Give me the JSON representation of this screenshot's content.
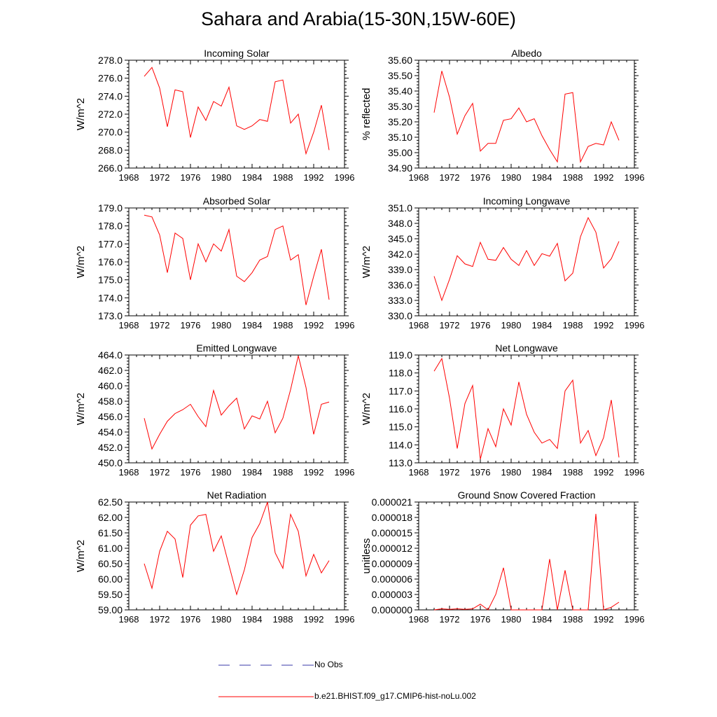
{
  "title": "Sahara and Arabia(15-30N,15W-60E)",
  "colors": {
    "model_line": "#ff0000",
    "obs_line": "#3a3aa8",
    "axis": "#000000"
  },
  "legend": {
    "obs_label": "No Obs",
    "model_label": "b.e21.BHIST.f09_g17.CMIP6-hist-noLu.002"
  },
  "chart_data": [
    {
      "type": "line",
      "title": "Incoming Solar",
      "ylabel": "W/m^2",
      "xlim": [
        1968,
        1996
      ],
      "ylim": [
        266.0,
        278.0
      ],
      "xticks": [
        1968,
        1972,
        1976,
        1980,
        1984,
        1988,
        1992,
        1996
      ],
      "xtick_labels": [
        "1968",
        "1972",
        "1976",
        "1980",
        "1984",
        "1988",
        "1992",
        "1996"
      ],
      "yticks": [
        266,
        268,
        270,
        272,
        274,
        276,
        278
      ],
      "ytick_labels": [
        "266.0",
        "268.0",
        "270.0",
        "272.0",
        "274.0",
        "276.0",
        "278.0"
      ],
      "x": [
        1970,
        1971,
        1972,
        1973,
        1974,
        1975,
        1976,
        1977,
        1978,
        1979,
        1980,
        1981,
        1982,
        1983,
        1984,
        1985,
        1986,
        1987,
        1988,
        1989,
        1990,
        1991,
        1992,
        1993,
        1994
      ],
      "series": [
        {
          "values": [
            276.2,
            277.2,
            274.9,
            270.6,
            274.7,
            274.5,
            269.4,
            272.8,
            271.3,
            273.4,
            272.9,
            275.0,
            270.7,
            270.3,
            270.7,
            271.4,
            271.2,
            275.6,
            275.8,
            271.0,
            272.0,
            267.6,
            270.0,
            273.0,
            268.0
          ]
        }
      ]
    },
    {
      "type": "line",
      "title": "Albedo",
      "ylabel": "% reflected",
      "xlim": [
        1968,
        1996
      ],
      "ylim": [
        34.9,
        35.6
      ],
      "xticks": [
        1968,
        1972,
        1976,
        1980,
        1984,
        1988,
        1992,
        1996
      ],
      "xtick_labels": [
        "1968",
        "1972",
        "1976",
        "1980",
        "1984",
        "1988",
        "1992",
        "1996"
      ],
      "yticks": [
        34.9,
        35.0,
        35.1,
        35.2,
        35.3,
        35.4,
        35.5,
        35.6
      ],
      "ytick_labels": [
        "34.90",
        "35.00",
        "35.10",
        "35.20",
        "35.30",
        "35.40",
        "35.50",
        "35.60"
      ],
      "x": [
        1970,
        1971,
        1972,
        1973,
        1974,
        1975,
        1976,
        1977,
        1978,
        1979,
        1980,
        1981,
        1982,
        1983,
        1984,
        1985,
        1986,
        1987,
        1988,
        1989,
        1990,
        1991,
        1992,
        1993,
        1994
      ],
      "series": [
        {
          "values": [
            35.26,
            35.53,
            35.36,
            35.12,
            35.24,
            35.32,
            35.01,
            35.06,
            35.06,
            35.21,
            35.22,
            35.29,
            35.2,
            35.22,
            35.11,
            35.02,
            34.94,
            35.38,
            35.39,
            34.94,
            35.04,
            35.06,
            35.05,
            35.2,
            35.08
          ]
        }
      ]
    },
    {
      "type": "line",
      "title": "Absorbed Solar",
      "ylabel": "W/m^2",
      "xlim": [
        1968,
        1996
      ],
      "ylim": [
        173.0,
        179.0
      ],
      "xticks": [
        1968,
        1972,
        1976,
        1980,
        1984,
        1988,
        1992,
        1996
      ],
      "xtick_labels": [
        "1968",
        "1972",
        "1976",
        "1980",
        "1984",
        "1988",
        "1992",
        "1996"
      ],
      "yticks": [
        173,
        174,
        175,
        176,
        177,
        178,
        179
      ],
      "ytick_labels": [
        "173.0",
        "174.0",
        "175.0",
        "176.0",
        "177.0",
        "178.0",
        "179.0"
      ],
      "x": [
        1970,
        1971,
        1972,
        1973,
        1974,
        1975,
        1976,
        1977,
        1978,
        1979,
        1980,
        1981,
        1982,
        1983,
        1984,
        1985,
        1986,
        1987,
        1988,
        1989,
        1990,
        1991,
        1992,
        1993,
        1994
      ],
      "series": [
        {
          "values": [
            178.6,
            178.5,
            177.5,
            175.4,
            177.6,
            177.3,
            175.0,
            177.0,
            176.0,
            177.0,
            176.6,
            177.8,
            175.2,
            174.9,
            175.4,
            176.1,
            176.3,
            177.8,
            178.0,
            176.1,
            176.4,
            173.6,
            175.2,
            176.7,
            173.9
          ]
        }
      ]
    },
    {
      "type": "line",
      "title": "Incoming Longwave",
      "ylabel": "W/m^2",
      "xlim": [
        1968,
        1996
      ],
      "ylim": [
        330.0,
        351.0
      ],
      "xticks": [
        1968,
        1972,
        1976,
        1980,
        1984,
        1988,
        1992,
        1996
      ],
      "xtick_labels": [
        "1968",
        "1972",
        "1976",
        "1980",
        "1984",
        "1988",
        "1992",
        "1996"
      ],
      "yticks": [
        330,
        333,
        336,
        339,
        342,
        345,
        348,
        351
      ],
      "ytick_labels": [
        "330.0",
        "333.0",
        "336.0",
        "339.0",
        "342.0",
        "345.0",
        "348.0",
        "351.0"
      ],
      "x": [
        1970,
        1971,
        1972,
        1973,
        1974,
        1975,
        1976,
        1977,
        1978,
        1979,
        1980,
        1981,
        1982,
        1983,
        1984,
        1985,
        1986,
        1987,
        1988,
        1989,
        1990,
        1991,
        1992,
        1993,
        1994
      ],
      "series": [
        {
          "values": [
            337.7,
            333.0,
            337.1,
            341.7,
            340.1,
            339.6,
            344.3,
            341.0,
            340.8,
            343.3,
            341.0,
            339.8,
            342.7,
            339.8,
            342.1,
            341.6,
            344.1,
            336.8,
            338.3,
            345.4,
            349.1,
            346.3,
            339.3,
            341.1,
            344.5
          ]
        }
      ]
    },
    {
      "type": "line",
      "title": "Emitted Longwave",
      "ylabel": "W/m^2",
      "xlim": [
        1968,
        1996
      ],
      "ylim": [
        450.0,
        464.0
      ],
      "xticks": [
        1968,
        1972,
        1976,
        1980,
        1984,
        1988,
        1992,
        1996
      ],
      "xtick_labels": [
        "1968",
        "1972",
        "1976",
        "1980",
        "1984",
        "1988",
        "1992",
        "1996"
      ],
      "yticks": [
        450,
        452,
        454,
        456,
        458,
        460,
        462,
        464
      ],
      "ytick_labels": [
        "450.0",
        "452.0",
        "454.0",
        "456.0",
        "458.0",
        "460.0",
        "462.0",
        "464.0"
      ],
      "x": [
        1970,
        1971,
        1972,
        1973,
        1974,
        1975,
        1976,
        1977,
        1978,
        1979,
        1980,
        1981,
        1982,
        1983,
        1984,
        1985,
        1986,
        1987,
        1988,
        1989,
        1990,
        1991,
        1992,
        1993,
        1994
      ],
      "series": [
        {
          "values": [
            455.8,
            451.8,
            453.7,
            455.4,
            456.4,
            456.9,
            457.6,
            456.0,
            454.7,
            459.4,
            456.2,
            457.4,
            458.4,
            454.4,
            456.1,
            455.7,
            458.0,
            453.9,
            455.8,
            459.5,
            463.9,
            459.8,
            453.7,
            457.6,
            457.9
          ]
        }
      ]
    },
    {
      "type": "line",
      "title": "Net Longwave",
      "ylabel": "W/m^2",
      "xlim": [
        1968,
        1996
      ],
      "ylim": [
        113.0,
        119.0
      ],
      "xticks": [
        1968,
        1972,
        1976,
        1980,
        1984,
        1988,
        1992,
        1996
      ],
      "xtick_labels": [
        "1968",
        "1972",
        "1976",
        "1980",
        "1984",
        "1988",
        "1992",
        "1996"
      ],
      "yticks": [
        113,
        114,
        115,
        116,
        117,
        118,
        119
      ],
      "ytick_labels": [
        "113.0",
        "114.0",
        "115.0",
        "116.0",
        "117.0",
        "118.0",
        "119.0"
      ],
      "x": [
        1970,
        1971,
        1972,
        1973,
        1974,
        1975,
        1976,
        1977,
        1978,
        1979,
        1980,
        1981,
        1982,
        1983,
        1984,
        1985,
        1986,
        1987,
        1988,
        1989,
        1990,
        1991,
        1992,
        1993,
        1994
      ],
      "series": [
        {
          "values": [
            118.1,
            118.8,
            116.6,
            113.8,
            116.3,
            117.3,
            113.2,
            114.9,
            113.9,
            116.0,
            115.1,
            117.5,
            115.7,
            114.7,
            114.1,
            114.3,
            113.8,
            117.0,
            117.6,
            114.1,
            114.8,
            113.4,
            114.4,
            116.5,
            113.3
          ]
        }
      ]
    },
    {
      "type": "line",
      "title": "Net Radiation",
      "ylabel": "W/m^2",
      "xlim": [
        1968,
        1996
      ],
      "ylim": [
        59.0,
        62.5
      ],
      "xticks": [
        1968,
        1972,
        1976,
        1980,
        1984,
        1988,
        1992,
        1996
      ],
      "xtick_labels": [
        "1968",
        "1972",
        "1976",
        "1980",
        "1984",
        "1988",
        "1992",
        "1996"
      ],
      "yticks": [
        59.0,
        59.5,
        60.0,
        60.5,
        61.0,
        61.5,
        62.0,
        62.5
      ],
      "ytick_labels": [
        "59.00",
        "59.50",
        "60.00",
        "60.50",
        "61.00",
        "61.50",
        "62.00",
        "62.50"
      ],
      "x": [
        1970,
        1971,
        1972,
        1973,
        1974,
        1975,
        1976,
        1977,
        1978,
        1979,
        1980,
        1981,
        1982,
        1983,
        1984,
        1985,
        1986,
        1987,
        1988,
        1989,
        1990,
        1991,
        1992,
        1993,
        1994
      ],
      "series": [
        {
          "values": [
            60.5,
            59.7,
            60.9,
            61.55,
            61.3,
            60.05,
            61.75,
            62.05,
            62.1,
            60.9,
            61.4,
            60.45,
            59.5,
            60.3,
            61.35,
            61.8,
            62.5,
            60.85,
            60.35,
            62.1,
            61.55,
            60.1,
            60.8,
            60.2,
            60.6
          ]
        }
      ]
    },
    {
      "type": "line",
      "title": "Ground Snow Covered Fraction",
      "ylabel": "unitless",
      "xlim": [
        1968,
        1996
      ],
      "ylim": [
        0,
        2.1e-05
      ],
      "xticks": [
        1968,
        1972,
        1976,
        1980,
        1984,
        1988,
        1992,
        1996
      ],
      "xtick_labels": [
        "1968",
        "1972",
        "1976",
        "1980",
        "1984",
        "1988",
        "1992",
        "1996"
      ],
      "yticks": [
        0,
        3e-06,
        6e-06,
        9e-06,
        1.2e-05,
        1.5e-05,
        1.8e-05,
        2.1e-05
      ],
      "ytick_labels": [
        "0.000000",
        "0.000003",
        "0.000006",
        "0.000009",
        "0.000012",
        "0.000015",
        "0.000018",
        "0.000021"
      ],
      "x": [
        1970,
        1971,
        1972,
        1973,
        1974,
        1975,
        1976,
        1977,
        1978,
        1979,
        1980,
        1981,
        1982,
        1983,
        1984,
        1985,
        1986,
        1987,
        1988,
        1989,
        1990,
        1991,
        1992,
        1993,
        1994
      ],
      "series": [
        {
          "values": [
            0,
            2e-07,
            1e-07,
            2e-07,
            1e-07,
            2e-07,
            1.1e-06,
            0,
            3e-06,
            8.2e-06,
            0,
            0,
            0,
            0,
            0,
            9.9e-06,
            0,
            7.7e-06,
            0,
            0,
            0,
            1.87e-05,
            0,
            5e-07,
            1.5e-06
          ]
        }
      ]
    }
  ]
}
